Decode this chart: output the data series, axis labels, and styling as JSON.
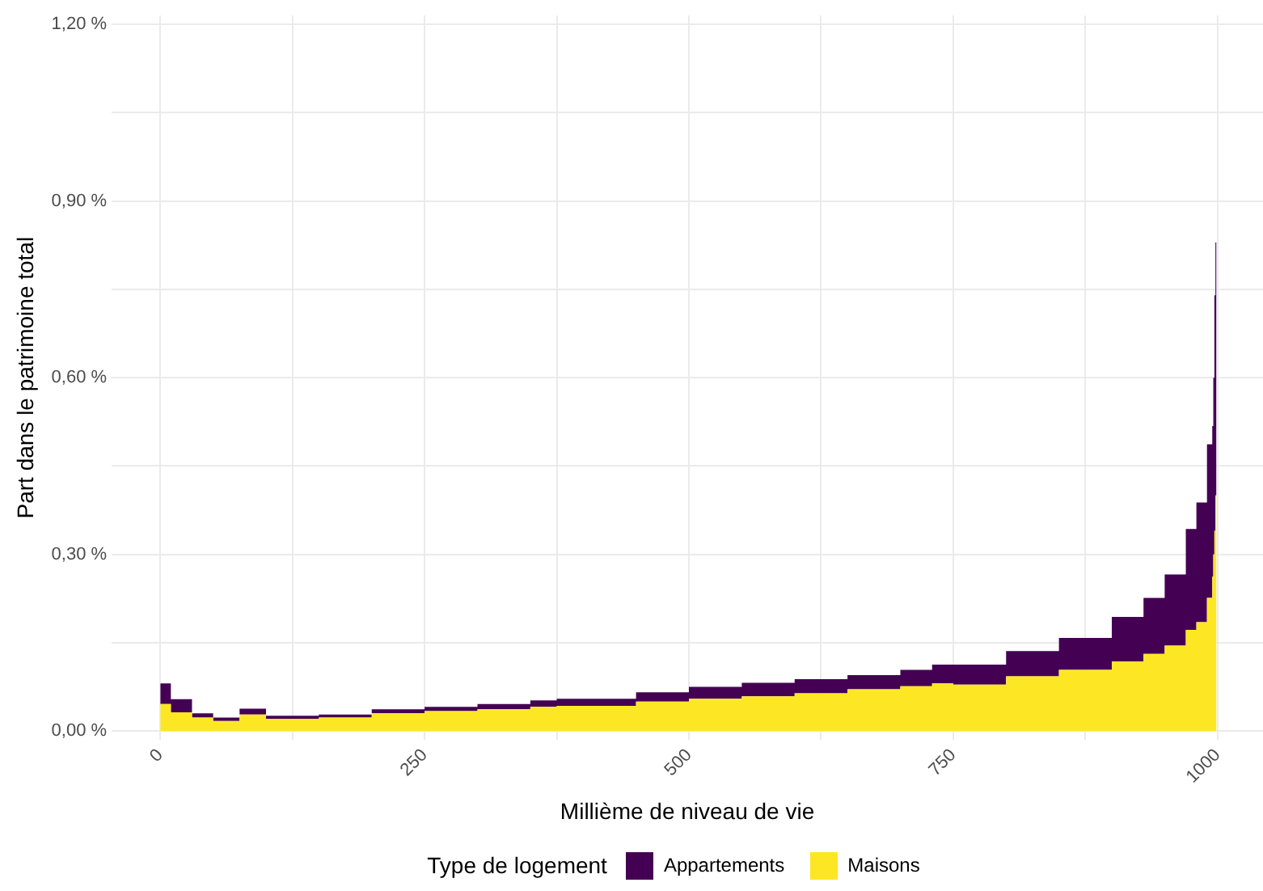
{
  "chart_data": {
    "type": "area",
    "stacked": true,
    "xlabel": "Millième de niveau de vie",
    "ylabel": "Part dans le patrimoine total",
    "legend_title": "Type de logement",
    "legend": "bottom",
    "grid": true,
    "x": [
      0,
      10,
      30,
      50,
      75,
      100,
      150,
      200,
      250,
      300,
      350,
      375,
      450,
      500,
      550,
      600,
      650,
      700,
      730,
      750,
      800,
      850,
      900,
      930,
      950,
      970,
      980,
      990,
      995,
      996,
      997,
      998,
      999
    ],
    "series": [
      {
        "name": "Maisons",
        "color": "#fde725",
        "values": [
          0.046,
          0.032,
          0.023,
          0.017,
          0.028,
          0.021,
          0.023,
          0.03,
          0.034,
          0.037,
          0.041,
          0.043,
          0.05,
          0.055,
          0.059,
          0.064,
          0.071,
          0.076,
          0.081,
          0.079,
          0.093,
          0.104,
          0.118,
          0.131,
          0.145,
          0.172,
          0.185,
          0.226,
          0.262,
          0.3,
          0.34,
          0.4,
          0.464
        ]
      },
      {
        "name": "Appartements",
        "color": "#440154",
        "values": [
          0.035,
          0.022,
          0.007,
          0.006,
          0.01,
          0.005,
          0.005,
          0.007,
          0.007,
          0.009,
          0.011,
          0.012,
          0.016,
          0.02,
          0.023,
          0.024,
          0.024,
          0.028,
          0.032,
          0.034,
          0.043,
          0.054,
          0.076,
          0.095,
          0.121,
          0.171,
          0.203,
          0.261,
          0.256,
          0.3,
          0.4,
          0.43,
          0.736
        ]
      }
    ],
    "xlim": [
      -46,
      1043
    ],
    "xticks": [
      0,
      {
        "value": 125,
        "label": null
      },
      250,
      {
        "value": 375,
        "label": null
      },
      500,
      {
        "value": 625,
        "label": null
      },
      750,
      {
        "value": 875,
        "label": null
      },
      1000
    ],
    "ylim": [
      -0.015,
      1.215
    ],
    "yticks": [
      {
        "value": 0,
        "label": "0,00 %"
      },
      {
        "value": 0.15,
        "label": null
      },
      {
        "value": 0.3,
        "label": "0,30 %"
      },
      {
        "value": 0.45,
        "label": null
      },
      {
        "value": 0.6,
        "label": "0,60 %"
      },
      {
        "value": 0.75,
        "label": null
      },
      {
        "value": 0.9,
        "label": "0,90 %"
      },
      {
        "value": 1.05,
        "label": null
      },
      {
        "value": 1.2,
        "label": "1,20 %"
      }
    ]
  }
}
